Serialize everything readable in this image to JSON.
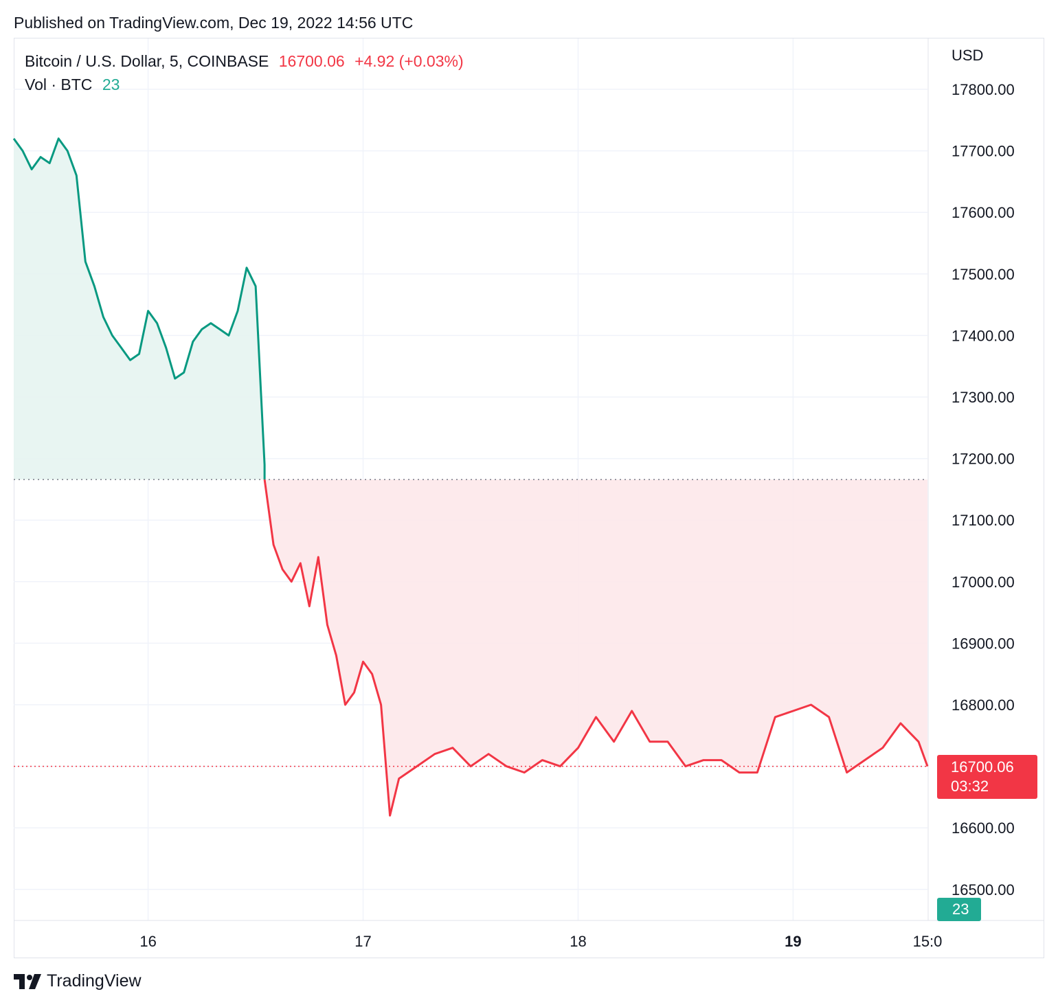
{
  "header": {
    "published": "Published on TradingView.com, Dec 19, 2022 14:56 UTC"
  },
  "legend": {
    "symbol": "Bitcoin / U.S. Dollar, 5, COINBASE",
    "last_price": "16700.06",
    "change": "+4.92 (+0.03%)",
    "volume_label": "Vol · BTC",
    "volume_value": "23"
  },
  "axis": {
    "currency": "USD",
    "price_ticks": [
      "17800.00",
      "17700.00",
      "17600.00",
      "17500.00",
      "17400.00",
      "17300.00",
      "17200.00",
      "17100.00",
      "17000.00",
      "16900.00",
      "16800.00",
      "16700.00",
      "16600.00",
      "16500.00"
    ],
    "time_ticks": [
      "16",
      "17",
      "18",
      "19",
      "15:0"
    ]
  },
  "price_label": {
    "price": "16700.06",
    "countdown": "03:32"
  },
  "volume_label_badge": "23",
  "footer": {
    "brand": "TradingView"
  },
  "colors": {
    "up": "#089981",
    "down": "#f23645",
    "up_fill": "#e6f4f1",
    "down_fill": "#fde8ea",
    "grid": "#f0f3fa",
    "text": "#131722"
  },
  "chart_data": {
    "type": "area",
    "title": "Bitcoin / U.S. Dollar, 5, COINBASE",
    "ylabel": "USD",
    "ylim": [
      16450,
      17850
    ],
    "baseline": 17166,
    "x_unit": "date (Dec 2022)",
    "xlim": [
      "2022-12-15 09:00",
      "2022-12-19 15:00"
    ],
    "series": [
      {
        "name": "Bitcoin / U.S. Dollar",
        "x": [
          "2022-12-15 09:00",
          "2022-12-15 10:00",
          "2022-12-15 11:00",
          "2022-12-15 12:00",
          "2022-12-15 13:00",
          "2022-12-15 14:00",
          "2022-12-15 15:00",
          "2022-12-15 16:00",
          "2022-12-15 17:00",
          "2022-12-15 18:00",
          "2022-12-15 19:00",
          "2022-12-15 20:00",
          "2022-12-15 21:00",
          "2022-12-15 22:00",
          "2022-12-15 23:00",
          "2022-12-16 00:00",
          "2022-12-16 01:00",
          "2022-12-16 02:00",
          "2022-12-16 03:00",
          "2022-12-16 04:00",
          "2022-12-16 05:00",
          "2022-12-16 06:00",
          "2022-12-16 07:00",
          "2022-12-16 08:00",
          "2022-12-16 09:00",
          "2022-12-16 10:00",
          "2022-12-16 11:00",
          "2022-12-16 12:00",
          "2022-12-16 13:00",
          "2022-12-16 14:00",
          "2022-12-16 15:00",
          "2022-12-16 16:00",
          "2022-12-16 17:00",
          "2022-12-16 18:00",
          "2022-12-16 19:00",
          "2022-12-16 20:00",
          "2022-12-16 21:00",
          "2022-12-16 22:00",
          "2022-12-16 23:00",
          "2022-12-17 00:00",
          "2022-12-17 01:00",
          "2022-12-17 02:00",
          "2022-12-17 03:00",
          "2022-12-17 04:00",
          "2022-12-17 06:00",
          "2022-12-17 08:00",
          "2022-12-17 10:00",
          "2022-12-17 12:00",
          "2022-12-17 14:00",
          "2022-12-17 16:00",
          "2022-12-17 18:00",
          "2022-12-17 20:00",
          "2022-12-17 22:00",
          "2022-12-18 00:00",
          "2022-12-18 02:00",
          "2022-12-18 04:00",
          "2022-12-18 06:00",
          "2022-12-18 08:00",
          "2022-12-18 10:00",
          "2022-12-18 12:00",
          "2022-12-18 14:00",
          "2022-12-18 16:00",
          "2022-12-18 18:00",
          "2022-12-18 20:00",
          "2022-12-18 22:00",
          "2022-12-19 00:00",
          "2022-12-19 02:00",
          "2022-12-19 04:00",
          "2022-12-19 06:00",
          "2022-12-19 08:00",
          "2022-12-19 10:00",
          "2022-12-19 12:00",
          "2022-12-19 14:00",
          "2022-12-19 15:00"
        ],
        "values": [
          17720,
          17700,
          17670,
          17690,
          17680,
          17720,
          17700,
          17660,
          17520,
          17480,
          17430,
          17400,
          17380,
          17360,
          17370,
          17440,
          17420,
          17380,
          17330,
          17340,
          17390,
          17410,
          17420,
          17410,
          17400,
          17440,
          17510,
          17480,
          17190,
          17060,
          17020,
          17000,
          17030,
          16960,
          17040,
          16930,
          16880,
          16800,
          16820,
          16870,
          16850,
          16800,
          16620,
          16680,
          16700,
          16720,
          16730,
          16700,
          16720,
          16700,
          16690,
          16710,
          16700,
          16730,
          16780,
          16740,
          16790,
          16740,
          16740,
          16700,
          16710,
          16710,
          16690,
          16690,
          16780,
          16790,
          16800,
          16780,
          16690,
          16710,
          16730,
          16770,
          16740,
          16700
        ]
      }
    ],
    "volume": {
      "name": "Vol · BTC",
      "last": 23
    }
  }
}
